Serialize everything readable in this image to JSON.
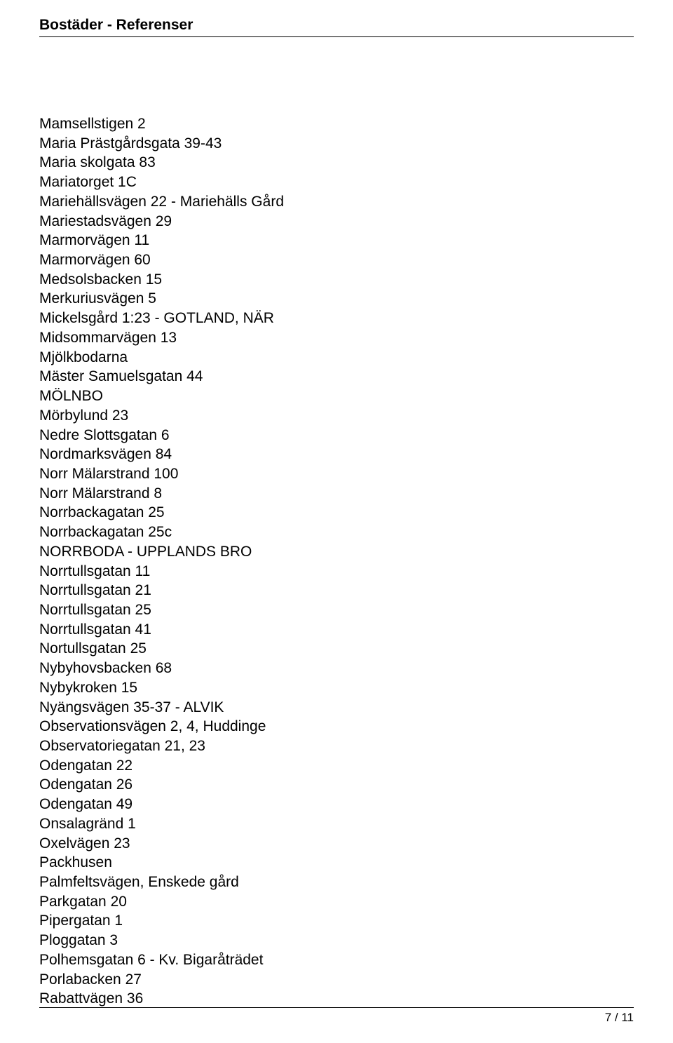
{
  "header": {
    "title": "Bostäder - Referenser"
  },
  "items": [
    "Mamsellstigen 2",
    "Maria Prästgårdsgata 39-43",
    "Maria skolgata 83",
    "Mariatorget 1C",
    "Mariehällsvägen 22 - Mariehälls Gård",
    "Mariestadsvägen 29",
    "Marmorvägen 11",
    "Marmorvägen 60",
    "Medsolsbacken 15",
    "Merkuriusvägen 5",
    "Mickelsgård 1:23 - GOTLAND, NÄR",
    "Midsommarvägen 13",
    "Mjölkbodarna",
    "Mäster Samuelsgatan 44",
    "MÖLNBO",
    "Mörbylund 23",
    "Nedre Slottsgatan 6",
    "Nordmarksvägen 84",
    "Norr Mälarstrand 100",
    "Norr Mälarstrand 8",
    "Norrbackagatan 25",
    "Norrbackagatan 25c",
    "NORRBODA - UPPLANDS BRO",
    "Norrtullsgatan 11",
    "Norrtullsgatan 21",
    "Norrtullsgatan 25",
    "Norrtullsgatan 41",
    "Nortullsgatan 25",
    "Nybyhovsbacken 68",
    "Nybykroken 15",
    "Nyängsvägen 35-37 - ALVIK",
    "Observationsvägen 2, 4, Huddinge",
    "Observatoriegatan 21, 23",
    "Odengatan 22",
    "Odengatan 26",
    "Odengatan 49",
    "Onsalagränd 1",
    "Oxelvägen 23",
    "Packhusen",
    "Palmfeltsvägen, Enskede gård",
    "Parkgatan 20",
    "Pipergatan 1",
    "Ploggatan 3",
    "Polhemsgatan 6 - Kv. Bigaråträdet",
    "Porlabacken 27",
    "Rabattvägen 36"
  ],
  "footer": {
    "page": "7 / 11"
  }
}
